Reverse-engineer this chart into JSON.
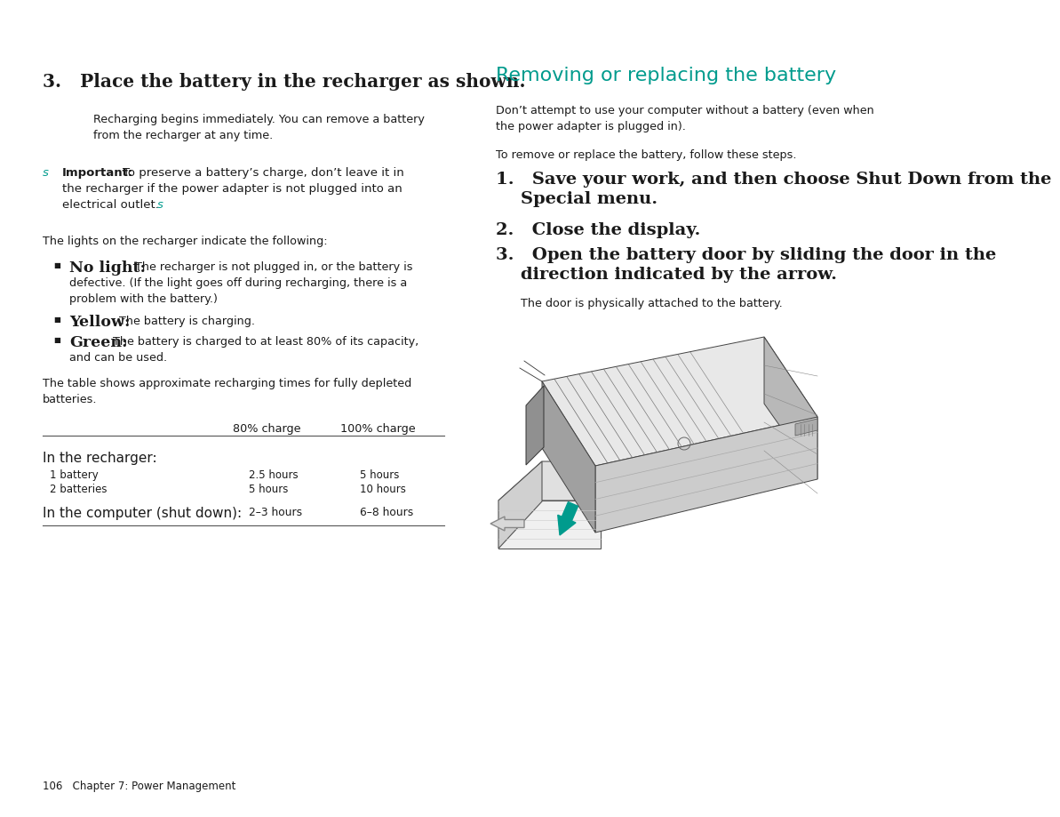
{
  "bg_color": "#ffffff",
  "teal_color": "#009B8D",
  "text_color": "#1a1a1a",
  "footer_text": "106   Chapter 7: Power Management",
  "left": {
    "heading": "3.   Place the battery in the recharger as shown.",
    "para1_line1": "Recharging begins immediately. You can remove a battery",
    "para1_line2": "from the recharger at any time.",
    "s_marker": "s",
    "important_label": "Important:",
    "important_line1": "To preserve a battery’s charge, don’t leave it in",
    "important_line2": "the recharger if the power adapter is not plugged into an",
    "important_line3": "electrical outlet.  s",
    "lights_para": "The lights on the recharger indicate the following:",
    "bullet1_head": "No light:",
    "bullet1_body1": "The recharger is not plugged in, or the battery is",
    "bullet1_body2": "defective. (If the light goes off during recharging, there is a",
    "bullet1_body3": "problem with the battery.)",
    "bullet2_head": "Yellow:",
    "bullet2_body": "The battery is charging.",
    "bullet3_head": "Green:",
    "bullet3_body1": "The battery is charged to at least 80% of its capacity,",
    "bullet3_body2": "and can be used.",
    "table_intro1": "The table shows approximate recharging times for fully depleted",
    "table_intro2": "batteries.",
    "col1_header": "80% charge",
    "col2_header": "100% charge",
    "row0_label": "In the recharger:",
    "row1_label": "1 battery",
    "row1_col1": "2.5 hours",
    "row1_col2": "5 hours",
    "row2_label": "2 batteries",
    "row2_col1": "5 hours",
    "row2_col2": "10 hours",
    "row3_label": "In the computer (shut down):",
    "row3_col1": "2–3 hours",
    "row3_col2": "6–8 hours"
  },
  "right": {
    "title": "Removing or replacing the battery",
    "para1_line1": "Don’t attempt to use your computer without a battery (even when",
    "para1_line2": "the power adapter is plugged in).",
    "para2": "To remove or replace the battery, follow these steps.",
    "step1_line1": "1.   Save your work, and then choose Shut Down from the",
    "step1_line2": "     Special menu.",
    "step2": "2.   Close the display.",
    "step3_line1": "3.   Open the battery door by sliding the door in the",
    "step3_line2": "     direction indicated by the arrow.",
    "step3_body": "The door is physically attached to the battery."
  }
}
